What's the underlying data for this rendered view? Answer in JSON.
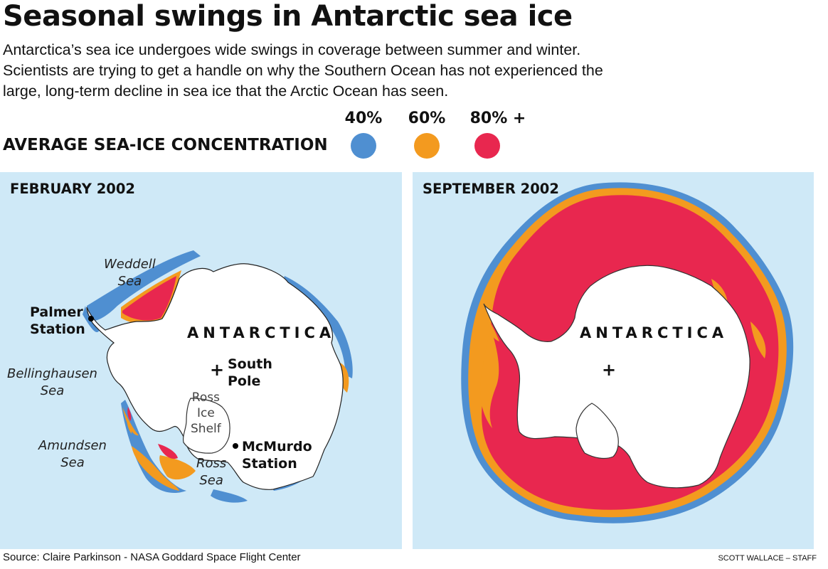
{
  "title": "Seasonal swings in Antarctic sea ice",
  "deck": [
    "Antarctica’s sea ice undergoes wide swings in coverage between summer and winter.",
    "Scientists are trying to get a handle on why the Southern Ocean has not experienced the",
    "large, long-term decline in sea ice that the Arctic Ocean has seen."
  ],
  "legend": {
    "title": "AVERAGE SEA-ICE CONCENTRATION",
    "items": [
      {
        "label": "40%",
        "color": "#4f8fd1"
      },
      {
        "label": "60%",
        "color": "#f39a1f"
      },
      {
        "label": "80% +",
        "color": "#e8274f"
      }
    ]
  },
  "colors": {
    "ocean": "#cfe9f7",
    "land": "#ffffff",
    "c40": "#4f8fd1",
    "c60": "#f39a1f",
    "c80": "#e8274f"
  },
  "panels": {
    "february": {
      "title": "FEBRUARY 2002",
      "continent": "ANTARCTICA",
      "weddell": [
        "Weddell",
        "Sea"
      ],
      "palmer": [
        "Palmer",
        "Station"
      ],
      "bellingshausen": [
        "Bellinghausen",
        "Sea"
      ],
      "south_pole": [
        "South",
        "Pole"
      ],
      "ross_shelf": [
        "Ross",
        "Ice",
        "Shelf"
      ],
      "amundsen": [
        "Amundsen",
        "Sea"
      ],
      "mcmurdo": [
        "McMurdo",
        "Station"
      ],
      "ross_sea": [
        "Ross",
        "Sea"
      ],
      "pole_marker": "+"
    },
    "september": {
      "title": "SEPTEMBER 2002",
      "continent": "ANTARCTICA",
      "pole_marker": "+"
    }
  },
  "source": "Source: Claire Parkinson - NASA Goddard Space Flight Center",
  "credit": "SCOTT WALLACE – STAFF"
}
